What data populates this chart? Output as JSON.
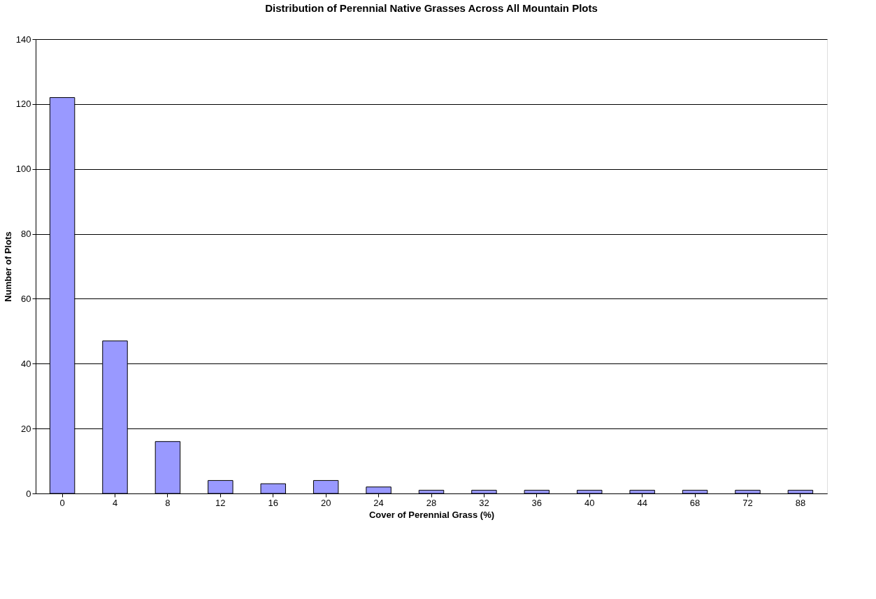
{
  "chart_data": {
    "type": "bar",
    "title": "Distribution of Perennial Native Grasses Across All Mountain Plots",
    "xlabel": "Cover of Perennial Grass (%)",
    "ylabel": "Number of Plots",
    "categories": [
      "0",
      "4",
      "8",
      "12",
      "16",
      "20",
      "24",
      "28",
      "32",
      "36",
      "40",
      "44",
      "68",
      "72",
      "88"
    ],
    "values": [
      122,
      47,
      16,
      4,
      3,
      4,
      2,
      1,
      1,
      1,
      1,
      1,
      1,
      1,
      1
    ],
    "color": "#9999ff",
    "ylim": [
      0,
      140
    ],
    "yticks": [
      0,
      20,
      40,
      60,
      80,
      100,
      120,
      140
    ],
    "grid": "y"
  }
}
